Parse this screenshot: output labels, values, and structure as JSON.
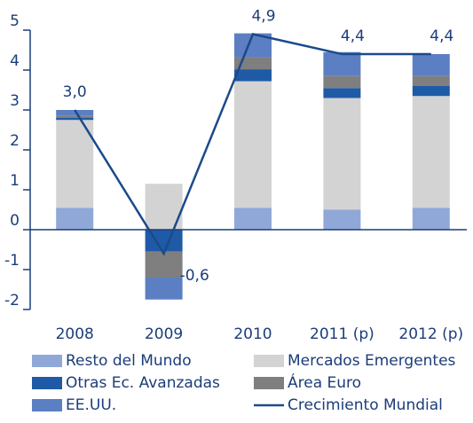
{
  "chart_data": {
    "type": "stacked-bar-line",
    "categories": [
      "2008",
      "2009",
      "2010",
      "2011 (p)",
      "2012 (p)"
    ],
    "series": [
      {
        "name": "Resto del Mundo",
        "color": "#8fa8d8",
        "values": [
          0.55,
          0,
          0.55,
          0.5,
          0.55
        ]
      },
      {
        "name": "Mercados Emergentes",
        "color": "#d3d3d3",
        "values": [
          2.2,
          1.15,
          3.17,
          2.8,
          2.8
        ]
      },
      {
        "name": "Otras Ec. Avanzadas",
        "color": "#1f5aa6",
        "values": [
          0.05,
          -0.55,
          0.3,
          0.25,
          0.25
        ]
      },
      {
        "name": "Área Euro",
        "color": "#7f7f7f",
        "values": [
          0.05,
          -0.65,
          0.3,
          0.3,
          0.25
        ]
      },
      {
        "name": "EE.UU.",
        "color": "#5b7fc2",
        "values": [
          0.15,
          -0.55,
          0.6,
          0.6,
          0.55
        ]
      }
    ],
    "line": {
      "name": "Crecimiento Mundial",
      "color": "#1b4a8c",
      "values": [
        3.0,
        -0.6,
        4.9,
        4.4,
        4.4
      ],
      "value_labels": [
        "3,0",
        "-0,6",
        "4,9",
        "4,4",
        "4,4"
      ]
    },
    "ylim": [
      -2,
      5
    ],
    "yticks": [
      -2,
      -1,
      0,
      1,
      2,
      3,
      4,
      5
    ]
  }
}
